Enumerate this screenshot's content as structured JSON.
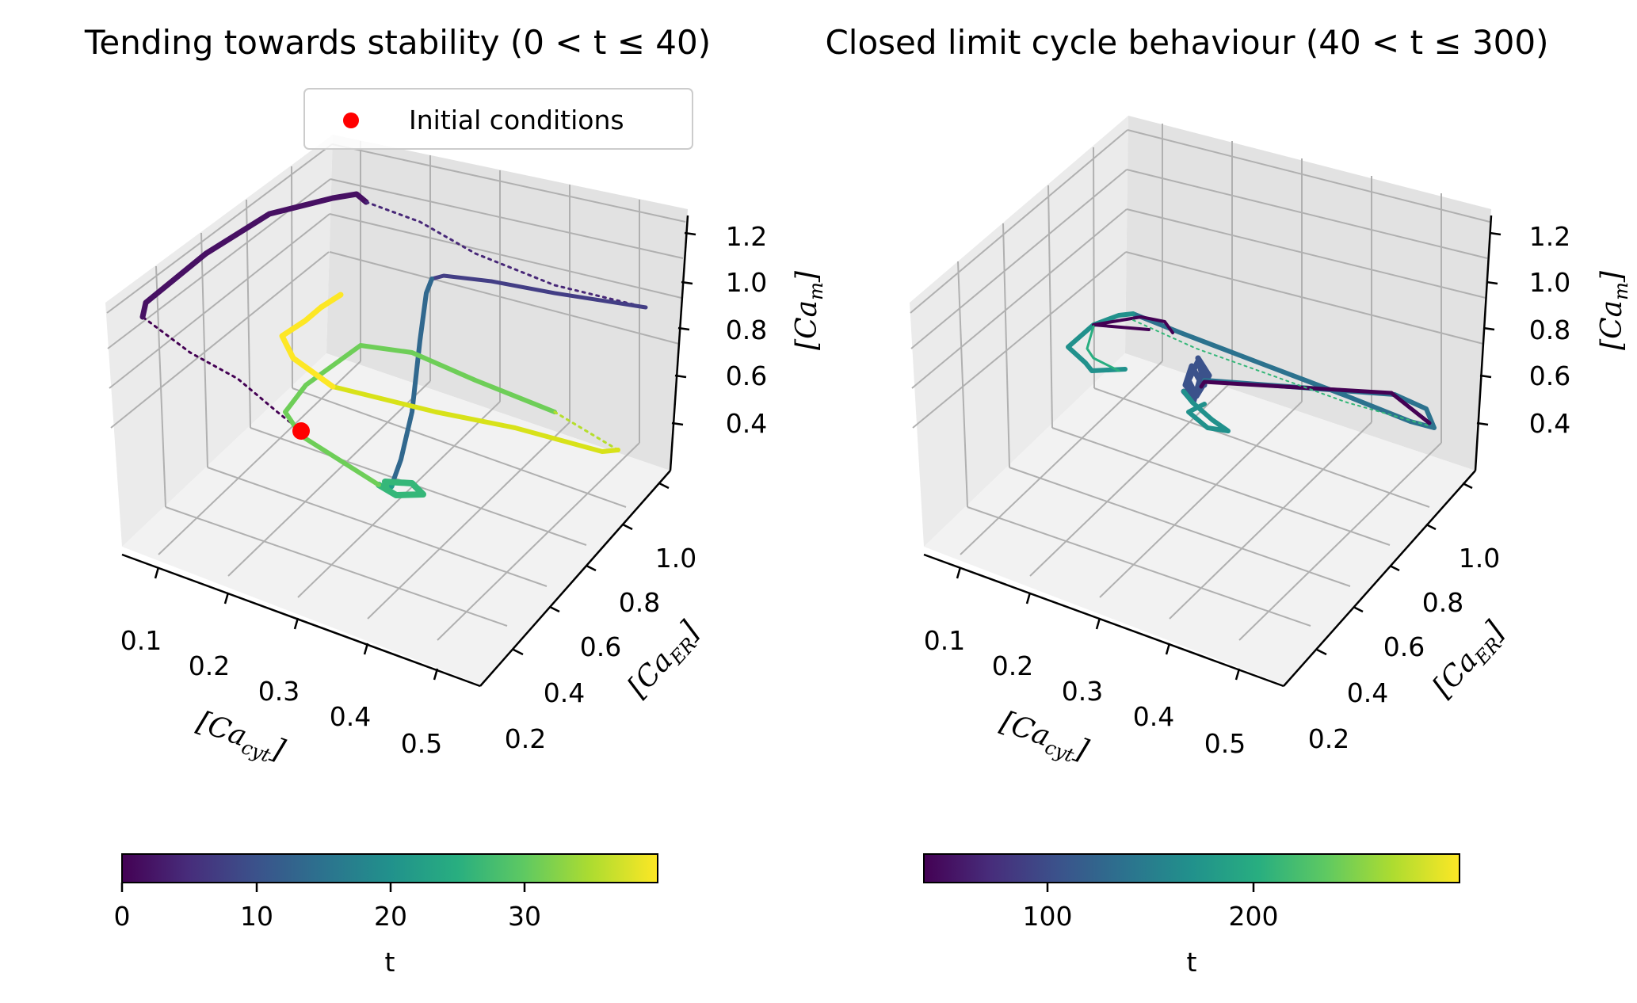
{
  "chart_data": [
    {
      "type": "scatter3d",
      "title": "Tending towards stability (0 < t ≤ 40)",
      "xlabel": "[Ca_cyt]",
      "ylabel": "[Ca_ER]",
      "zlabel": "[Ca_m]",
      "xticks": [
        "0.1",
        "0.2",
        "0.3",
        "0.4",
        "0.5"
      ],
      "yticks": [
        "0.2",
        "0.4",
        "0.6",
        "0.8",
        "1.0"
      ],
      "zticks": [
        "0.4",
        "0.6",
        "0.8",
        "1.0",
        "1.2"
      ],
      "colormap": "viridis",
      "colorbar": {
        "label": "t",
        "ticks": [
          "0",
          "10",
          "20",
          "30"
        ],
        "range": [
          0,
          40
        ]
      },
      "legend": {
        "label": "Initial conditions",
        "color": "#ff0000",
        "placement": "top-center"
      },
      "initial_condition": {
        "ca_cyt": 0.25,
        "ca_er": 0.55,
        "ca_m": 0.45
      }
    },
    {
      "type": "scatter3d",
      "title": "Closed limit cycle behaviour (40 < t ≤ 300)",
      "xlabel": "[Ca_cyt]",
      "ylabel": "[Ca_ER]",
      "zlabel": "[Ca_m]",
      "xticks": [
        "0.1",
        "0.2",
        "0.3",
        "0.4",
        "0.5"
      ],
      "yticks": [
        "0.2",
        "0.4",
        "0.6",
        "0.8",
        "1.0"
      ],
      "zticks": [
        "0.4",
        "0.6",
        "0.8",
        "1.0",
        "1.2"
      ],
      "colormap": "viridis",
      "colorbar": {
        "label": "t",
        "ticks": [
          "100",
          "200"
        ],
        "range": [
          40,
          300
        ]
      }
    }
  ]
}
